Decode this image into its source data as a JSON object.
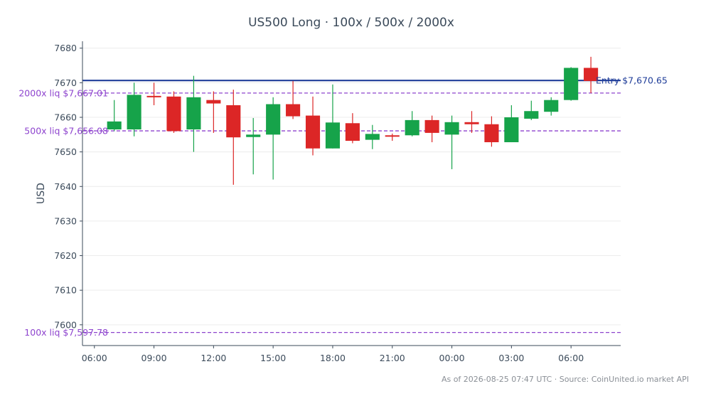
{
  "chart_data": {
    "type": "candlestick",
    "title": "US500 Long · 100x / 500x / 2000x",
    "ylabel": "USD",
    "ylim": [
      7594,
      7682
    ],
    "y_ticks": [
      7600,
      7610,
      7620,
      7630,
      7640,
      7650,
      7660,
      7670,
      7680
    ],
    "y_tick_labels": [
      "7600",
      "7610",
      "7620",
      "7630",
      "7640",
      "7650",
      "7660",
      "7670",
      "7680"
    ],
    "x_ticks": [
      0,
      3,
      6,
      9,
      12,
      15,
      18,
      21,
      24
    ],
    "x_tick_labels": [
      "06:00",
      "09:00",
      "12:00",
      "15:00",
      "18:00",
      "21:00",
      "00:00",
      "03:00",
      "06:00"
    ],
    "xlim": [
      -0.6,
      26.5
    ],
    "grid": true,
    "candles": [
      {
        "t": 1,
        "open": 7656.5,
        "high": 7665.0,
        "low": 7656.0,
        "close": 7658.8
      },
      {
        "t": 2,
        "open": 7656.5,
        "high": 7670.0,
        "low": 7654.5,
        "close": 7666.5
      },
      {
        "t": 3,
        "open": 7666.2,
        "high": 7670.0,
        "low": 7663.5,
        "close": 7665.8
      },
      {
        "t": 4,
        "open": 7666.0,
        "high": 7667.5,
        "low": 7655.5,
        "close": 7656.0
      },
      {
        "t": 5,
        "open": 7656.5,
        "high": 7672.0,
        "low": 7650.0,
        "close": 7665.8
      },
      {
        "t": 6,
        "open": 7665.0,
        "high": 7667.5,
        "low": 7655.5,
        "close": 7664.0
      },
      {
        "t": 7,
        "open": 7663.5,
        "high": 7668.0,
        "low": 7640.5,
        "close": 7654.2
      },
      {
        "t": 8,
        "open": 7654.3,
        "high": 7659.8,
        "low": 7643.5,
        "close": 7655.0
      },
      {
        "t": 9,
        "open": 7655.0,
        "high": 7665.8,
        "low": 7642.0,
        "close": 7663.8
      },
      {
        "t": 10,
        "open": 7663.8,
        "high": 7670.5,
        "low": 7659.5,
        "close": 7660.3
      },
      {
        "t": 11,
        "open": 7660.5,
        "high": 7666.0,
        "low": 7649.0,
        "close": 7651.0
      },
      {
        "t": 12,
        "open": 7651.0,
        "high": 7669.5,
        "low": 7651.0,
        "close": 7658.5
      },
      {
        "t": 13,
        "open": 7658.3,
        "high": 7661.2,
        "low": 7652.5,
        "close": 7653.2
      },
      {
        "t": 14,
        "open": 7653.5,
        "high": 7657.8,
        "low": 7650.8,
        "close": 7655.2
      },
      {
        "t": 15,
        "open": 7654.8,
        "high": 7655.3,
        "low": 7653.2,
        "close": 7654.7
      },
      {
        "t": 16,
        "open": 7654.8,
        "high": 7661.8,
        "low": 7654.5,
        "close": 7659.2
      },
      {
        "t": 17,
        "open": 7659.2,
        "high": 7660.5,
        "low": 7652.8,
        "close": 7655.5
      },
      {
        "t": 18,
        "open": 7655.0,
        "high": 7660.5,
        "low": 7645.0,
        "close": 7658.6
      },
      {
        "t": 19,
        "open": 7658.6,
        "high": 7661.8,
        "low": 7655.5,
        "close": 7658.0
      },
      {
        "t": 20,
        "open": 7658.0,
        "high": 7660.3,
        "low": 7651.5,
        "close": 7652.8
      },
      {
        "t": 21,
        "open": 7652.8,
        "high": 7663.5,
        "low": 7652.8,
        "close": 7660.0
      },
      {
        "t": 22,
        "open": 7659.6,
        "high": 7664.8,
        "low": 7659.2,
        "close": 7661.8
      },
      {
        "t": 23,
        "open": 7661.6,
        "high": 7665.8,
        "low": 7660.5,
        "close": 7665.0
      },
      {
        "t": 24,
        "open": 7665.0,
        "high": 7674.5,
        "low": 7664.8,
        "close": 7674.3
      },
      {
        "t": 25,
        "open": 7674.3,
        "high": 7677.5,
        "low": 7667.0,
        "close": 7670.5
      }
    ],
    "levels": [
      {
        "value": 7670.65,
        "label": "Entry $7,670.65",
        "color": "#1f3d99",
        "style": "solid"
      },
      {
        "value": 7667.01,
        "label": "2000x liq $7,667.01",
        "color": "#8e44ce",
        "style": "dashed"
      },
      {
        "value": 7656.08,
        "label": "500x liq $7,656.08",
        "color": "#8e44ce",
        "style": "dashed"
      },
      {
        "value": 7597.78,
        "label": "100x liq $7,597.78",
        "color": "#8e44ce",
        "style": "dashed"
      }
    ],
    "colors": {
      "up": "#16a34a",
      "down": "#dc2626"
    },
    "source_note": "As of 2026-08-25 07:47 UTC · Source: CoinUnited.io market API"
  }
}
